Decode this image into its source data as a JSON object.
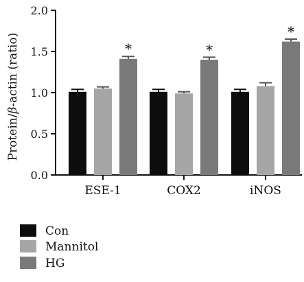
{
  "chart_data": {
    "type": "bar",
    "categories": [
      "ESE-1",
      "COX2",
      "iNOS"
    ],
    "series": [
      {
        "name": "Con",
        "values": [
          1.01,
          1.01,
          1.01
        ],
        "errors": [
          0.03,
          0.03,
          0.03
        ],
        "color": "#0d0d0d"
      },
      {
        "name": "Mannitol",
        "values": [
          1.05,
          0.99,
          1.08
        ],
        "errors": [
          0.02,
          0.02,
          0.04
        ],
        "color": "#a6a6a6"
      },
      {
        "name": "HG",
        "values": [
          1.41,
          1.4,
          1.62
        ],
        "errors": [
          0.03,
          0.03,
          0.03
        ],
        "color": "#7a7a7a"
      }
    ],
    "significance": [
      {
        "category": "ESE-1",
        "series": "HG",
        "label": "*"
      },
      {
        "category": "COX2",
        "series": "HG",
        "label": "*"
      },
      {
        "category": "iNOS",
        "series": "HG",
        "label": "*"
      }
    ],
    "ylabel_prefix": "Protein/",
    "ylabel_beta": "β",
    "ylabel_suffix": "-actin (ratio)",
    "ylim": [
      0,
      2.0
    ],
    "yticks": [
      "0.0",
      "0.5",
      "1.0",
      "1.5",
      "2.0"
    ],
    "legend_position": "bottom-left",
    "grid": false
  }
}
